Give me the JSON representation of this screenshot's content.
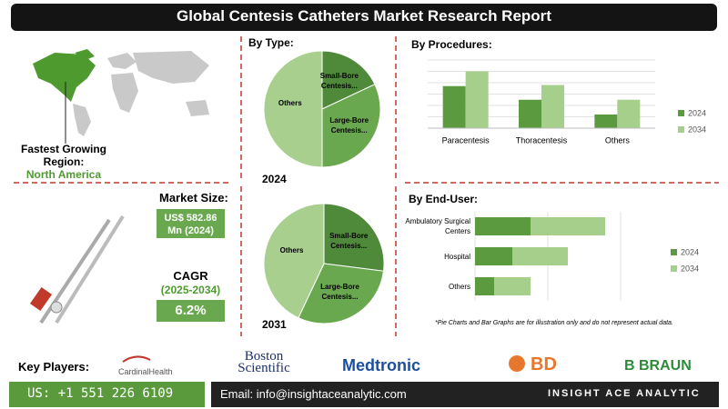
{
  "header": {
    "title": "Global Centesis Catheters Market Research Report"
  },
  "region": {
    "label": "Fastest Growing Region:",
    "value": "North America"
  },
  "market": {
    "size_label": "Market Size:",
    "size_value": "US$ 582.86 Mn (2024)",
    "cagr_label": "CAGR",
    "cagr_period": "(2025-2034)",
    "cagr_value": "6.2%"
  },
  "chart_data": [
    {
      "type": "pie",
      "title": "By Type:",
      "subtitle": "2024",
      "categories": [
        "Small-Bore Centesis...",
        "Large-Bore Centesis...",
        "Others"
      ],
      "values": [
        18,
        32,
        50
      ],
      "colors": [
        "#4f8a3b",
        "#6aa84f",
        "#a8cf8e"
      ]
    },
    {
      "type": "pie",
      "subtitle": "2031",
      "categories": [
        "Small-Bore Centesis...",
        "Large-Bore Centesis...",
        "Others"
      ],
      "values": [
        27,
        30,
        43
      ],
      "colors": [
        "#4f8a3b",
        "#6aa84f",
        "#a8cf8e"
      ]
    },
    {
      "type": "bar",
      "title": "By Procedures:",
      "categories": [
        "Paracentesis",
        "Thoracentesis",
        "Others"
      ],
      "series": [
        {
          "name": "2024",
          "color": "#5b9a3f",
          "values": [
            3.7,
            2.5,
            1.2
          ]
        },
        {
          "name": "2034",
          "color": "#a6cf8c",
          "values": [
            5,
            3.8,
            2.5
          ]
        }
      ],
      "ylim": [
        0,
        6
      ],
      "yticks": [
        0,
        1,
        2,
        3,
        4,
        5,
        6
      ],
      "grid": true
    },
    {
      "type": "hbar-stacked",
      "title": "By End-User:",
      "categories": [
        "Ambulatory Surgical Centers",
        "Hospital",
        "Others"
      ],
      "series": [
        {
          "name": "2024",
          "color": "#5b9a3f",
          "values": [
            6.1,
            4.1,
            2.1
          ]
        },
        {
          "name": "2034",
          "color": "#a6cf8c",
          "values": [
            8.2,
            6.1,
            4
          ]
        }
      ],
      "xlim": [
        0,
        16
      ],
      "xticks": [
        0,
        8,
        16
      ],
      "grid": true
    }
  ],
  "note": "*Pie Charts and Bar Graphs are for illustration only and do not represent actual data.",
  "footer": {
    "key_players_label": "Key Players:",
    "players": [
      "CardinalHealth",
      "Boston Scientific",
      "Medtronic",
      "BD",
      "B BRAUN"
    ],
    "phone": "US: +1 551 226 6109",
    "email": "Email: info@insightaceanalytic.com",
    "brand": "INSIGHT ACE ANALYTIC"
  }
}
